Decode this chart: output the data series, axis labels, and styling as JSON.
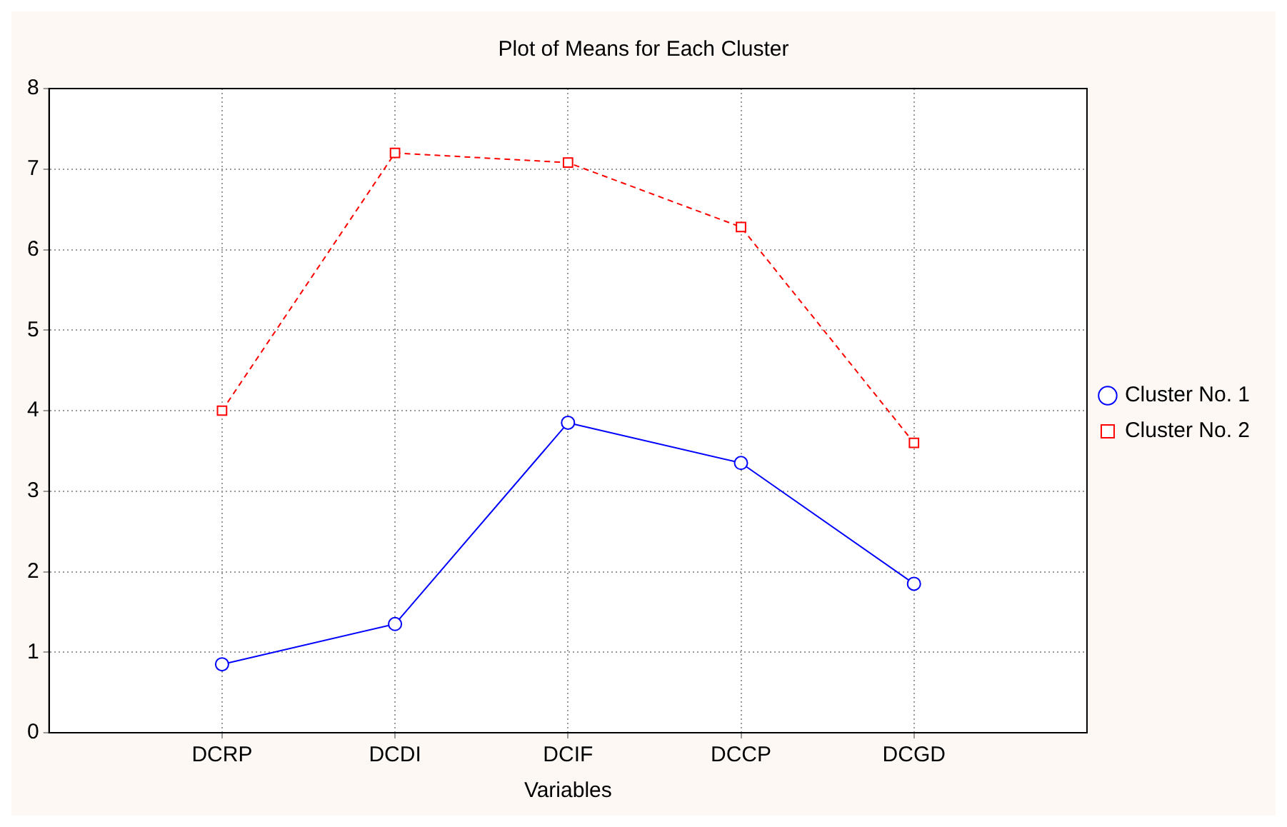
{
  "chart_data": {
    "type": "line",
    "title": "Plot of Means for Each Cluster",
    "xlabel": "Variables",
    "categories": [
      "DCRP",
      "DCDI",
      "DCIF",
      "DCCP",
      "DCGD"
    ],
    "series": [
      {
        "name": "Cluster No. 1",
        "color": "#0000ff",
        "values": [
          0.85,
          1.35,
          3.85,
          3.35,
          1.85
        ],
        "marker": "circle",
        "line_style": "solid"
      },
      {
        "name": "Cluster No. 2",
        "color": "#ff0000",
        "values": [
          4.0,
          7.2,
          7.08,
          6.28,
          3.6
        ],
        "marker": "square",
        "line_style": "dashed"
      }
    ],
    "ylim": [
      0,
      8
    ],
    "yticks": [
      0,
      1,
      2,
      3,
      4,
      5,
      6,
      7,
      8
    ],
    "grid": true,
    "legend": "right"
  }
}
